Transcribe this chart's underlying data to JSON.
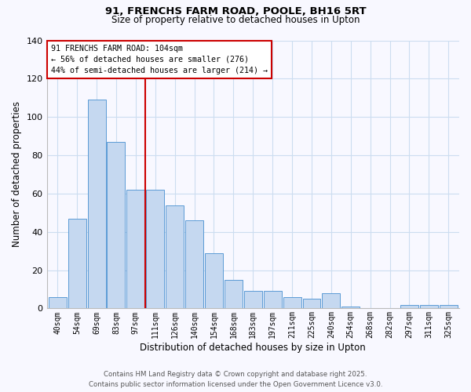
{
  "title1": "91, FRENCHS FARM ROAD, POOLE, BH16 5RT",
  "title2": "Size of property relative to detached houses in Upton",
  "xlabel": "Distribution of detached houses by size in Upton",
  "ylabel": "Number of detached properties",
  "bar_labels": [
    "40sqm",
    "54sqm",
    "69sqm",
    "83sqm",
    "97sqm",
    "111sqm",
    "126sqm",
    "140sqm",
    "154sqm",
    "168sqm",
    "183sqm",
    "197sqm",
    "211sqm",
    "225sqm",
    "240sqm",
    "254sqm",
    "268sqm",
    "282sqm",
    "297sqm",
    "311sqm",
    "325sqm"
  ],
  "bar_values": [
    6,
    47,
    109,
    87,
    62,
    62,
    54,
    46,
    29,
    15,
    9,
    9,
    6,
    5,
    8,
    1,
    0,
    0,
    2,
    2,
    2
  ],
  "bar_color": "#c5d8f0",
  "bar_edge_color": "#5b9bd5",
  "ylim": [
    0,
    140
  ],
  "yticks": [
    0,
    20,
    40,
    60,
    80,
    100,
    120,
    140
  ],
  "vline_x_index": 5,
  "vline_color": "#cc0000",
  "annotation_title": "91 FRENCHS FARM ROAD: 104sqm",
  "annotation_line1": "← 56% of detached houses are smaller (276)",
  "annotation_line2": "44% of semi-detached houses are larger (214) →",
  "annotation_box_color": "#ffffff",
  "annotation_box_edge": "#cc0000",
  "footer1": "Contains HM Land Registry data © Crown copyright and database right 2025.",
  "footer2": "Contains public sector information licensed under the Open Government Licence v3.0.",
  "background_color": "#f8f8ff",
  "grid_color": "#ccddf0"
}
